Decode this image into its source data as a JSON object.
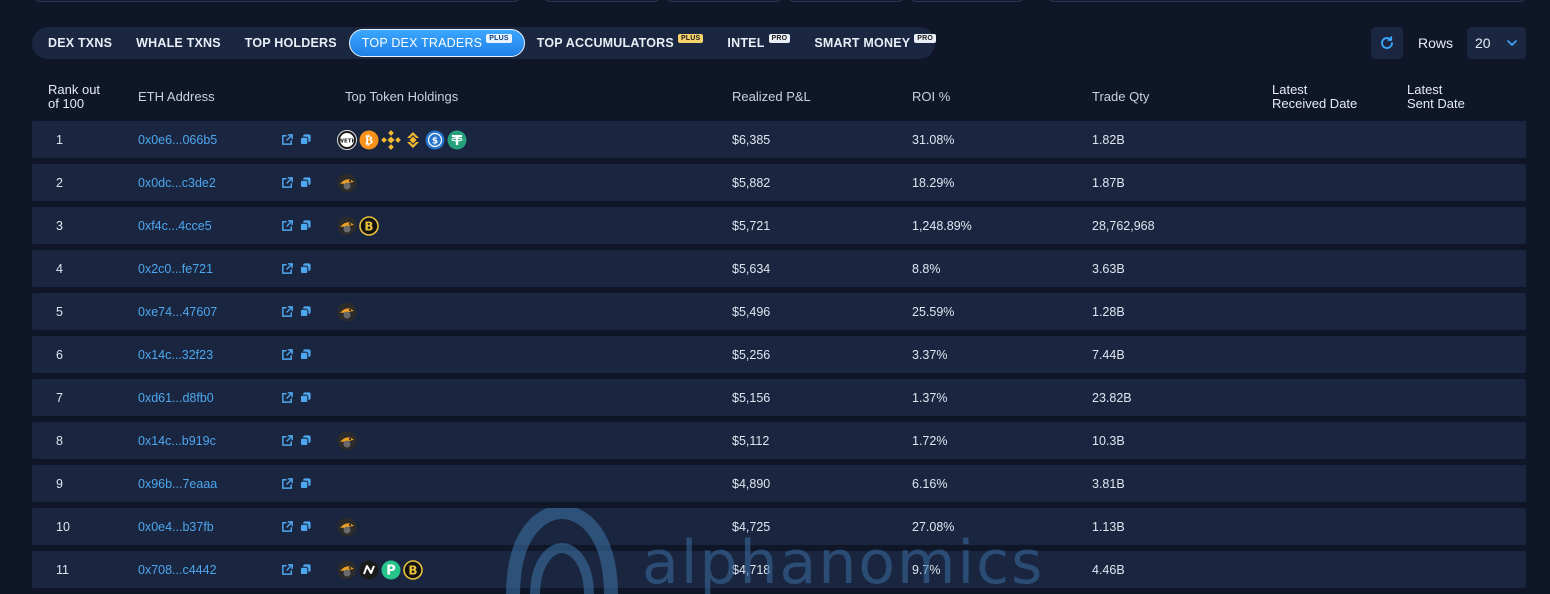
{
  "tabs": [
    {
      "label": "DEX TXNS",
      "badge": ""
    },
    {
      "label": "WHALE TXNS",
      "badge": ""
    },
    {
      "label": "TOP HOLDERS",
      "badge": ""
    },
    {
      "label": "TOP DEX TRADERS",
      "badge": "PLUS",
      "active": true
    },
    {
      "label": "TOP ACCUMULATORS",
      "badge": "PLUS"
    },
    {
      "label": "INTEL",
      "badge": "PRO"
    },
    {
      "label": "SMART MONEY",
      "badge": "PRO"
    }
  ],
  "controls": {
    "rows_label": "Rows",
    "rows_value": "20"
  },
  "table": {
    "headers": {
      "rank_line1": "Rank out",
      "rank_line2": "of 100",
      "address": "ETH Address",
      "holdings": "Top Token Holdings",
      "pnl": "Realized P&L",
      "roi": "ROI %",
      "qty": "Trade Qty",
      "received_line1": "Latest",
      "received_line2": "Received Date",
      "sent_line1": "Latest",
      "sent_line2": "Sent Date"
    },
    "rows": [
      {
        "rank": "1",
        "address": "0x0e6...066b5",
        "tokens": [
          "weth-icon",
          "bitcoin-icon",
          "bnb-icon",
          "bnb-alt-icon",
          "usdc-icon",
          "tether-icon"
        ],
        "pnl": "$6,385",
        "roi": "31.08%",
        "qty": "1.82B"
      },
      {
        "rank": "2",
        "address": "0x0dc...c3de2",
        "tokens": [
          "bird-token-icon"
        ],
        "pnl": "$5,882",
        "roi": "18.29%",
        "qty": "1.87B"
      },
      {
        "rank": "3",
        "address": "0xf4c...4cce5",
        "tokens": [
          "bird-token-icon",
          "gold-b-token-icon"
        ],
        "pnl": "$5,721",
        "roi": "1,248.89%",
        "qty": "28,762,968"
      },
      {
        "rank": "4",
        "address": "0x2c0...fe721",
        "tokens": [],
        "pnl": "$5,634",
        "roi": "8.8%",
        "qty": "3.63B"
      },
      {
        "rank": "5",
        "address": "0xe74...47607",
        "tokens": [
          "bird-token-icon"
        ],
        "pnl": "$5,496",
        "roi": "25.59%",
        "qty": "1.28B"
      },
      {
        "rank": "6",
        "address": "0x14c...32f23",
        "tokens": [],
        "pnl": "$5,256",
        "roi": "3.37%",
        "qty": "7.44B"
      },
      {
        "rank": "7",
        "address": "0xd61...d8fb0",
        "tokens": [],
        "pnl": "$5,156",
        "roi": "1.37%",
        "qty": "23.82B"
      },
      {
        "rank": "8",
        "address": "0x14c...b919c",
        "tokens": [
          "bird-token-icon"
        ],
        "pnl": "$5,112",
        "roi": "1.72%",
        "qty": "10.3B"
      },
      {
        "rank": "9",
        "address": "0x96b...7eaaa",
        "tokens": [],
        "pnl": "$4,890",
        "roi": "6.16%",
        "qty": "3.81B"
      },
      {
        "rank": "10",
        "address": "0x0e4...b37fb",
        "tokens": [
          "bird-token-icon"
        ],
        "pnl": "$4,725",
        "roi": "27.08%",
        "qty": "1.13B"
      },
      {
        "rank": "11",
        "address": "0x708...c4442",
        "tokens": [
          "bird-token-icon",
          "nostr-token-icon",
          "p-token-icon",
          "gold-b-token-icon"
        ],
        "pnl": "$4,718",
        "roi": "9.7%",
        "qty": "4.46B"
      }
    ]
  },
  "watermark": {
    "text": "alphanomics"
  },
  "colors": {
    "accent": "#3ba7ff",
    "link": "#4ea6ee",
    "row_bg": "#1a2640",
    "page_bg": "#0e1628",
    "plus_badge": "#f6d36b"
  }
}
